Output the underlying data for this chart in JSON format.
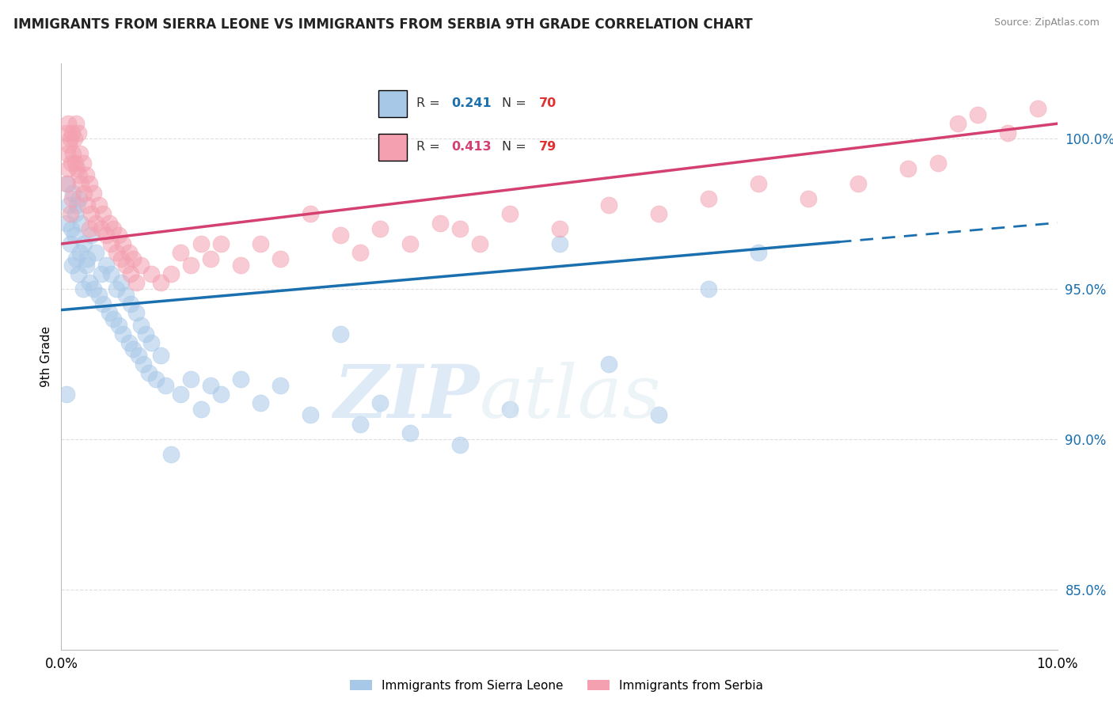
{
  "title": "IMMIGRANTS FROM SIERRA LEONE VS IMMIGRANTS FROM SERBIA 9TH GRADE CORRELATION CHART",
  "source": "Source: ZipAtlas.com",
  "ylabel": "9th Grade",
  "xlim": [
    0.0,
    10.0
  ],
  "ylim": [
    83.0,
    102.5
  ],
  "yticks": [
    85.0,
    90.0,
    95.0,
    100.0
  ],
  "ytick_labels": [
    "85.0%",
    "90.0%",
    "95.0%",
    "100.0%"
  ],
  "legend_blue_label": "Immigrants from Sierra Leone",
  "legend_pink_label": "Immigrants from Serbia",
  "R_blue": "0.241",
  "N_blue": "70",
  "R_pink": "0.413",
  "N_pink": "79",
  "blue_color": "#a8c8e8",
  "pink_color": "#f4a0b0",
  "blue_line_color": "#1a6faf",
  "pink_line_color": "#d44070",
  "blue_line_x0": 0.0,
  "blue_line_y0": 94.3,
  "blue_line_x1": 10.0,
  "blue_line_y1": 97.2,
  "blue_solid_end": 7.8,
  "pink_line_x0": 0.0,
  "pink_line_y0": 96.5,
  "pink_line_x1": 10.0,
  "pink_line_y1": 100.5,
  "blue_scatter": [
    [
      0.05,
      97.2
    ],
    [
      0.06,
      98.5
    ],
    [
      0.08,
      97.8
    ],
    [
      0.09,
      96.5
    ],
    [
      0.1,
      97.0
    ],
    [
      0.11,
      95.8
    ],
    [
      0.12,
      98.2
    ],
    [
      0.13,
      96.8
    ],
    [
      0.14,
      97.5
    ],
    [
      0.15,
      96.0
    ],
    [
      0.16,
      97.8
    ],
    [
      0.17,
      95.5
    ],
    [
      0.18,
      98.0
    ],
    [
      0.19,
      96.2
    ],
    [
      0.2,
      97.2
    ],
    [
      0.22,
      95.0
    ],
    [
      0.23,
      96.5
    ],
    [
      0.25,
      95.8
    ],
    [
      0.26,
      96.0
    ],
    [
      0.28,
      95.2
    ],
    [
      0.3,
      96.8
    ],
    [
      0.32,
      95.0
    ],
    [
      0.35,
      96.2
    ],
    [
      0.38,
      94.8
    ],
    [
      0.4,
      95.5
    ],
    [
      0.42,
      94.5
    ],
    [
      0.45,
      95.8
    ],
    [
      0.48,
      94.2
    ],
    [
      0.5,
      95.5
    ],
    [
      0.52,
      94.0
    ],
    [
      0.55,
      95.0
    ],
    [
      0.58,
      93.8
    ],
    [
      0.6,
      95.2
    ],
    [
      0.62,
      93.5
    ],
    [
      0.65,
      94.8
    ],
    [
      0.68,
      93.2
    ],
    [
      0.7,
      94.5
    ],
    [
      0.72,
      93.0
    ],
    [
      0.75,
      94.2
    ],
    [
      0.78,
      92.8
    ],
    [
      0.8,
      93.8
    ],
    [
      0.82,
      92.5
    ],
    [
      0.85,
      93.5
    ],
    [
      0.88,
      92.2
    ],
    [
      0.9,
      93.2
    ],
    [
      0.95,
      92.0
    ],
    [
      1.0,
      92.8
    ],
    [
      1.05,
      91.8
    ],
    [
      1.1,
      89.5
    ],
    [
      1.2,
      91.5
    ],
    [
      1.3,
      92.0
    ],
    [
      1.4,
      91.0
    ],
    [
      1.5,
      91.8
    ],
    [
      1.6,
      91.5
    ],
    [
      1.8,
      92.0
    ],
    [
      2.0,
      91.2
    ],
    [
      2.2,
      91.8
    ],
    [
      2.5,
      90.8
    ],
    [
      2.8,
      93.5
    ],
    [
      3.0,
      90.5
    ],
    [
      3.2,
      91.2
    ],
    [
      3.5,
      90.2
    ],
    [
      4.0,
      89.8
    ],
    [
      4.5,
      91.0
    ],
    [
      5.0,
      96.5
    ],
    [
      5.5,
      92.5
    ],
    [
      6.0,
      90.8
    ],
    [
      6.5,
      95.0
    ],
    [
      7.0,
      96.2
    ],
    [
      0.05,
      91.5
    ]
  ],
  "pink_scatter": [
    [
      0.05,
      100.2
    ],
    [
      0.06,
      99.5
    ],
    [
      0.07,
      100.5
    ],
    [
      0.08,
      99.8
    ],
    [
      0.09,
      100.0
    ],
    [
      0.1,
      99.2
    ],
    [
      0.11,
      100.2
    ],
    [
      0.12,
      99.5
    ],
    [
      0.13,
      100.0
    ],
    [
      0.14,
      99.2
    ],
    [
      0.15,
      100.5
    ],
    [
      0.16,
      99.0
    ],
    [
      0.17,
      100.2
    ],
    [
      0.18,
      98.8
    ],
    [
      0.19,
      99.5
    ],
    [
      0.2,
      98.5
    ],
    [
      0.22,
      99.2
    ],
    [
      0.23,
      98.2
    ],
    [
      0.25,
      98.8
    ],
    [
      0.26,
      97.8
    ],
    [
      0.28,
      98.5
    ],
    [
      0.3,
      97.5
    ],
    [
      0.32,
      98.2
    ],
    [
      0.35,
      97.2
    ],
    [
      0.38,
      97.8
    ],
    [
      0.4,
      97.0
    ],
    [
      0.42,
      97.5
    ],
    [
      0.45,
      96.8
    ],
    [
      0.48,
      97.2
    ],
    [
      0.5,
      96.5
    ],
    [
      0.52,
      97.0
    ],
    [
      0.55,
      96.2
    ],
    [
      0.58,
      96.8
    ],
    [
      0.6,
      96.0
    ],
    [
      0.62,
      96.5
    ],
    [
      0.65,
      95.8
    ],
    [
      0.68,
      96.2
    ],
    [
      0.7,
      95.5
    ],
    [
      0.72,
      96.0
    ],
    [
      0.75,
      95.2
    ],
    [
      0.8,
      95.8
    ],
    [
      0.9,
      95.5
    ],
    [
      1.0,
      95.2
    ],
    [
      1.1,
      95.5
    ],
    [
      1.2,
      96.2
    ],
    [
      1.3,
      95.8
    ],
    [
      1.4,
      96.5
    ],
    [
      1.5,
      96.0
    ],
    [
      1.6,
      96.5
    ],
    [
      1.8,
      95.8
    ],
    [
      2.0,
      96.5
    ],
    [
      2.2,
      96.0
    ],
    [
      2.5,
      97.5
    ],
    [
      2.8,
      96.8
    ],
    [
      3.0,
      96.2
    ],
    [
      3.2,
      97.0
    ],
    [
      3.5,
      96.5
    ],
    [
      3.8,
      97.2
    ],
    [
      4.0,
      97.0
    ],
    [
      4.2,
      96.5
    ],
    [
      4.5,
      97.5
    ],
    [
      5.0,
      97.0
    ],
    [
      5.5,
      97.8
    ],
    [
      6.0,
      97.5
    ],
    [
      6.5,
      98.0
    ],
    [
      7.0,
      98.5
    ],
    [
      7.5,
      98.0
    ],
    [
      8.0,
      98.5
    ],
    [
      8.5,
      99.0
    ],
    [
      8.8,
      99.2
    ],
    [
      9.0,
      100.5
    ],
    [
      9.2,
      100.8
    ],
    [
      9.5,
      100.2
    ],
    [
      9.8,
      101.0
    ],
    [
      0.05,
      98.5
    ],
    [
      0.07,
      99.0
    ],
    [
      0.09,
      97.5
    ],
    [
      0.11,
      98.0
    ],
    [
      0.28,
      97.0
    ]
  ],
  "watermark_zip": "ZIP",
  "watermark_atlas": "atlas",
  "background_color": "#ffffff",
  "grid_color": "#d0d0d0"
}
